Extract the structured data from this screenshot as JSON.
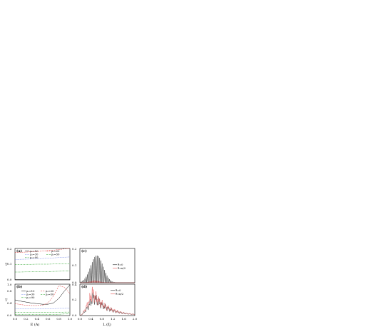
{
  "chart_data": [
    {
      "panel": "(a)",
      "type": "line",
      "ylabel": "T",
      "xlim": [
        0.0,
        1.0
      ],
      "ylim": [
        0.0,
        0.2
      ],
      "yticks": [
        "0.2",
        "0.1",
        "0.0"
      ],
      "legend": {
        "placement": "top",
        "entries": [
          "μ₀=10",
          "μ₀=20",
          "μ₀=30",
          "μ₀=50",
          "μ₀=90"
        ]
      },
      "x": [
        0.0,
        0.1,
        0.2,
        0.3,
        0.4,
        0.5,
        0.6,
        0.7,
        0.8,
        0.9,
        1.0
      ],
      "series": [
        {
          "name": "μ₀=10",
          "color": "#000000",
          "dash": "solid",
          "values": [
            0.002,
            0.002,
            0.002,
            0.002,
            0.002,
            0.002,
            0.002,
            0.002,
            0.002,
            0.002,
            0.002
          ]
        },
        {
          "name": "μ₀=20",
          "color": "#e03030",
          "dash": "dash",
          "values": [
            0.175,
            0.176,
            0.177,
            0.179,
            0.181,
            0.183,
            0.186,
            0.189,
            0.193,
            0.197,
            0.2
          ]
        },
        {
          "name": "μ₀=30",
          "color": "#3050e0",
          "dash": "dot",
          "values": [
            0.13,
            0.131,
            0.132,
            0.133,
            0.134,
            0.136,
            0.138,
            0.14,
            0.142,
            0.144,
            0.146
          ]
        },
        {
          "name": "μ₀=50",
          "color": "#20a020",
          "dash": "dashdot",
          "values": [
            0.098,
            0.098,
            0.099,
            0.099,
            0.1,
            0.1,
            0.1,
            0.101,
            0.101,
            0.101,
            0.101
          ]
        },
        {
          "name": "μ₀=90",
          "color": "#20a020",
          "dash": "dashdotdot",
          "values": [
            0.05,
            0.05,
            0.051,
            0.051,
            0.052,
            0.052,
            0.053,
            0.054,
            0.055,
            0.056,
            0.058
          ]
        }
      ]
    },
    {
      "panel": "(b)",
      "type": "line",
      "xlabel": "E (A)",
      "ylabel": "T",
      "xlim": [
        0.0,
        1.0
      ],
      "ylim": [
        0.0,
        1.0
      ],
      "xticks": [
        "0.0",
        "0.2",
        "0.4",
        "0.6",
        "0.8",
        "1.0"
      ],
      "yticks": [
        "1.0",
        "0.8",
        "0.4",
        "0.0"
      ],
      "legend": {
        "placement": "center-left",
        "entries": [
          "μ₀=10",
          "μ₀=20",
          "μ₀=30",
          "μ₀=50",
          "μ₀=90"
        ]
      },
      "x": [
        0.0,
        0.1,
        0.2,
        0.3,
        0.4,
        0.5,
        0.6,
        0.7,
        0.8,
        0.9,
        1.0
      ],
      "series": [
        {
          "name": "μ₀=10",
          "color": "#000000",
          "dash": "solid",
          "values": [
            0.5,
            0.46,
            0.43,
            0.4,
            0.38,
            0.36,
            0.36,
            0.4,
            0.55,
            0.78,
            0.98
          ]
        },
        {
          "name": "μ₀=20",
          "color": "#e03030",
          "dash": "dash",
          "values": [
            0.38,
            0.35,
            0.33,
            0.32,
            0.32,
            0.33,
            0.4,
            0.62,
            0.95,
            0.9,
            0.7
          ]
        },
        {
          "name": "μ₀=30",
          "color": "#3050e0",
          "dash": "dot",
          "values": [
            0.22,
            0.21,
            0.21,
            0.21,
            0.21,
            0.21,
            0.22,
            0.22,
            0.23,
            0.23,
            0.24
          ]
        },
        {
          "name": "μ₀=50",
          "color": "#20a020",
          "dash": "dashdot",
          "values": [
            0.1,
            0.1,
            0.1,
            0.1,
            0.1,
            0.1,
            0.1,
            0.1,
            0.1,
            0.11,
            0.11
          ]
        },
        {
          "name": "μ₀=90",
          "color": "#20a020",
          "dash": "dashdotdot",
          "values": [
            0.04,
            0.04,
            0.04,
            0.04,
            0.04,
            0.04,
            0.04,
            0.04,
            0.04,
            0.05,
            0.05
          ]
        }
      ]
    },
    {
      "panel": "(c)",
      "type": "line",
      "xlim": [
        0.0,
        2.0
      ],
      "ylim": [
        0.0,
        0.2
      ],
      "yticks": [
        "0.2",
        "0.1",
        "0.0"
      ],
      "legend": {
        "placement": "right",
        "entries": [
          "θ=0",
          "θ=π/2"
        ]
      },
      "series": [
        {
          "name": "θ=0",
          "color": "#000000",
          "form": "oscillating",
          "center": 0.62,
          "width": 0.32,
          "peak": 0.16,
          "period": 0.045
        },
        {
          "name": "θ=π/2",
          "color": "#e03030",
          "form": "oscillating",
          "center": 0.55,
          "width": 0.25,
          "peak": 0.012,
          "period": 0.045
        }
      ]
    },
    {
      "panel": "(d)",
      "type": "line",
      "xlabel": "L (ξ)",
      "xlim": [
        0.0,
        2.0
      ],
      "ylim": [
        0.0,
        0.4
      ],
      "xticks": [
        "0.0",
        "0.4",
        "0.8",
        "1.2",
        "1.6",
        "2.0"
      ],
      "yticks": [
        "0.4",
        "0.2",
        "0.0"
      ],
      "legend": {
        "placement": "top-right",
        "entries": [
          "θ=0",
          "θ=π/2"
        ]
      },
      "series": [
        {
          "name": "θ=0",
          "color": "#000000",
          "form": "noisy-decay",
          "peak": 0.33,
          "peak_x": 0.5
        },
        {
          "name": "θ=π/2",
          "color": "#e03030",
          "form": "noisy-decay",
          "peak": 0.4,
          "peak_x": 0.45
        }
      ]
    }
  ]
}
